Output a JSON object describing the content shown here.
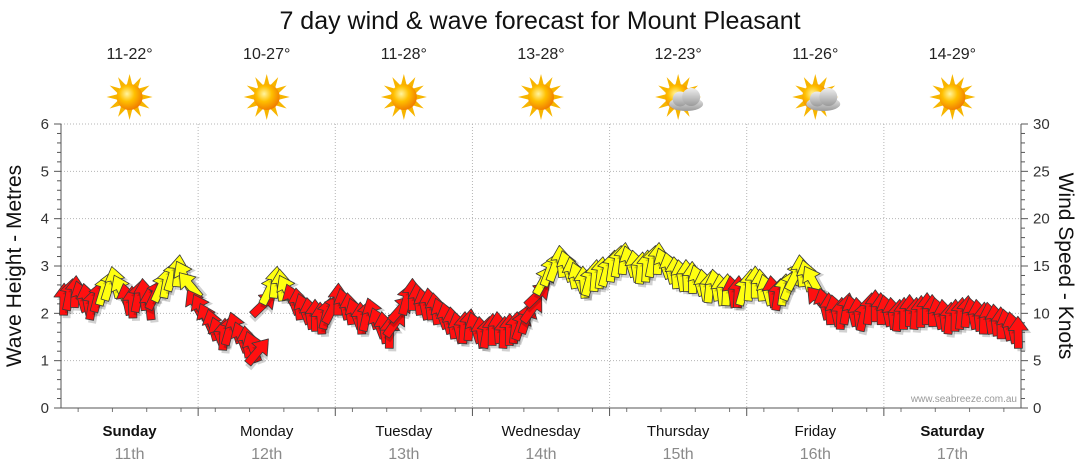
{
  "chart_data": {
    "type": "line",
    "title": "7 day wind & wave forecast for Mount Pleasant",
    "ylabel_left": "Wave Height - Metres",
    "ylabel_right": "Wind Speed - Knots",
    "ylim_left": [
      0,
      6
    ],
    "ylim_right": [
      0,
      30
    ],
    "yticks_left": [
      "0",
      "1",
      "2",
      "3",
      "4",
      "5",
      "6"
    ],
    "yticks_right": [
      "0",
      "5",
      "10",
      "15",
      "20",
      "25",
      "30"
    ],
    "days": [
      {
        "name": "Sunday",
        "date": "11th",
        "temp": "11-22°",
        "weather": "sunny",
        "bold": true
      },
      {
        "name": "Monday",
        "date": "12th",
        "temp": "10-27°",
        "weather": "sunny",
        "bold": false
      },
      {
        "name": "Tuesday",
        "date": "13th",
        "temp": "11-28°",
        "weather": "sunny",
        "bold": false
      },
      {
        "name": "Wednesday",
        "date": "14th",
        "temp": "13-28°",
        "weather": "sunny",
        "bold": false
      },
      {
        "name": "Thursday",
        "date": "15th",
        "temp": "12-23°",
        "weather": "partly-cloudy",
        "bold": false
      },
      {
        "name": "Friday",
        "date": "16th",
        "temp": "11-26°",
        "weather": "partly-cloudy",
        "bold": false
      },
      {
        "name": "Saturday",
        "date": "17th",
        "temp": "14-29°",
        "weather": "sunny",
        "bold": true
      }
    ],
    "series": [
      {
        "name": "Wind Speed (knots)",
        "axis": "right",
        "note": "hourly samples across 7 days; arrow colour = wind strength, arrow direction = wind direction",
        "values": [
          11.5,
          12,
          12.3,
          11.8,
          11.5,
          11,
          11.8,
          12.5,
          13,
          13.3,
          12.5,
          11.5,
          11.2,
          11.8,
          12,
          11,
          12,
          12.8,
          13.3,
          14,
          14.5,
          14,
          13,
          11,
          10.5,
          9.5,
          8.8,
          8,
          7.8,
          8.3,
          8.5,
          7.5,
          7,
          6.5,
          6,
          11,
          12.5,
          13.3,
          13,
          12.5,
          11.5,
          11,
          10.5,
          10,
          9.8,
          9.5,
          10,
          10.5,
          11.5,
          11,
          10.5,
          10,
          9.5,
          9.8,
          10,
          9,
          8.5,
          8,
          9,
          10.5,
          11.5,
          12,
          11.5,
          11,
          11,
          10.5,
          10,
          9.5,
          9,
          8.5,
          8.5,
          8.8,
          8.5,
          8,
          8,
          8.3,
          8.5,
          8,
          8.3,
          8.5,
          8.8,
          9.5,
          10.5,
          12,
          13.5,
          14.5,
          15,
          15.5,
          15,
          14.3,
          13.8,
          13.3,
          13.5,
          14,
          14.3,
          14.5,
          15,
          15.5,
          15.8,
          15.5,
          15,
          14.8,
          15,
          15.5,
          15.8,
          15.3,
          14.8,
          14.3,
          14,
          14,
          13.8,
          13.5,
          13,
          12.8,
          13,
          12.5,
          12.5,
          12.3,
          12.3,
          12.5,
          13,
          13.3,
          13,
          12.5,
          12.3,
          12,
          12.5,
          13,
          14,
          14.5,
          14,
          13.5,
          11.5,
          11,
          10.5,
          10.3,
          10,
          10.5,
          10.3,
          10,
          9.8,
          10.5,
          10.8,
          10.5,
          10.3,
          10,
          9.8,
          10,
          10.3,
          10,
          10.2,
          10.5,
          10.3,
          10,
          9.8,
          9.5,
          9.8,
          10,
          10.2,
          10,
          9.8,
          9.5,
          9.5,
          9.3,
          9,
          8.8,
          8.5,
          8
        ]
      }
    ],
    "legend": "none",
    "credit": "www.seabreeze.com.au"
  }
}
